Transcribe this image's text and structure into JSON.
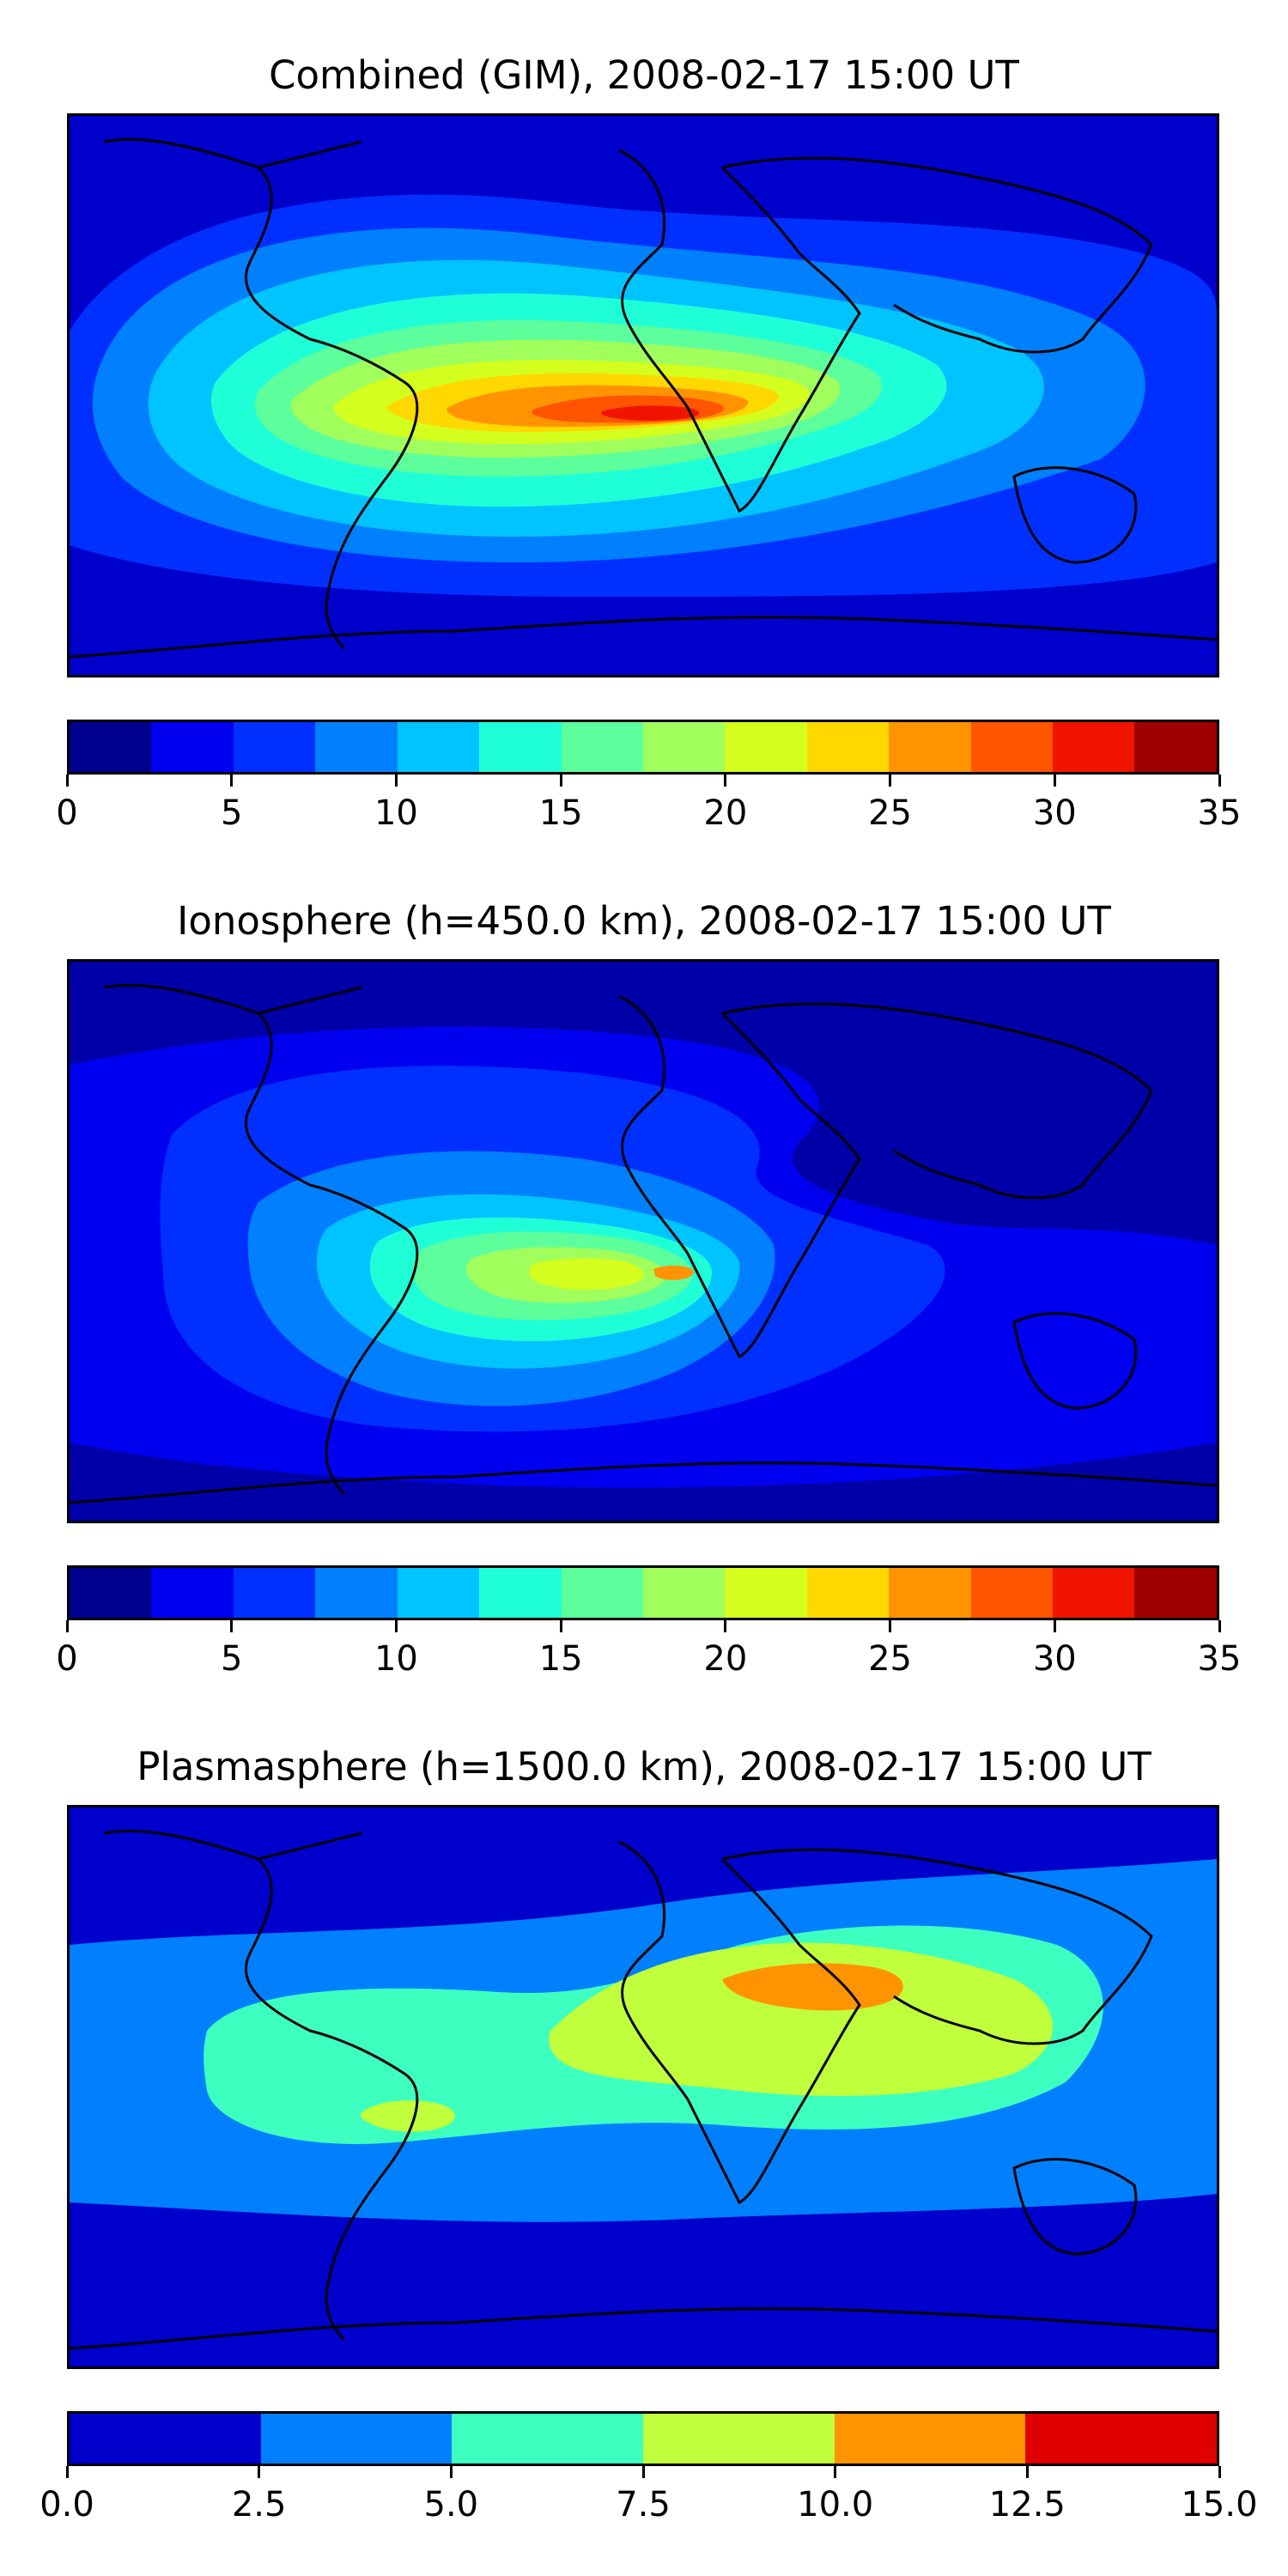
{
  "panels": [
    {
      "title": "Combined (GIM), 2008-02-17 15:00 UT",
      "background": "#0000cc",
      "colorbar": {
        "colors": [
          "#00008f",
          "#0000f0",
          "#0030ff",
          "#0080ff",
          "#00c4ff",
          "#1effd8",
          "#5cff9c",
          "#a0ff5c",
          "#d4ff1e",
          "#ffd800",
          "#ff9400",
          "#ff5400",
          "#f01400",
          "#a00000"
        ],
        "ticks": [
          "0",
          "5",
          "10",
          "15",
          "20",
          "25",
          "30",
          "35"
        ]
      },
      "contours": [
        {
          "color": "#0030ff"
        },
        {
          "color": "#0080ff"
        },
        {
          "color": "#00c4ff"
        },
        {
          "color": "#1effd8"
        },
        {
          "color": "#5cff9c"
        },
        {
          "color": "#a0ff5c"
        },
        {
          "color": "#d4ff1e"
        },
        {
          "color": "#ffd800"
        },
        {
          "color": "#ff9400"
        },
        {
          "color": "#ff5400"
        },
        {
          "color": "#f01400"
        }
      ]
    },
    {
      "title": "Ionosphere  (h=450.0 km), 2008-02-17 15:00 UT",
      "background": "#0000a8",
      "colorbar": {
        "colors": [
          "#00008f",
          "#0000f0",
          "#0030ff",
          "#0080ff",
          "#00c4ff",
          "#1effd8",
          "#5cff9c",
          "#a0ff5c",
          "#d4ff1e",
          "#ffd800",
          "#ff9400",
          "#ff5400",
          "#f01400",
          "#a00000"
        ],
        "ticks": [
          "0",
          "5",
          "10",
          "15",
          "20",
          "25",
          "30",
          "35"
        ]
      },
      "contours": [
        {
          "color": "#0000f0"
        },
        {
          "color": "#0030ff"
        },
        {
          "color": "#0080ff"
        },
        {
          "color": "#00c4ff"
        },
        {
          "color": "#1effd8"
        },
        {
          "color": "#5cff9c"
        },
        {
          "color": "#a0ff5c"
        },
        {
          "color": "#d4ff1e"
        },
        {
          "color": "#ff9400"
        }
      ]
    },
    {
      "title": "Plasmasphere (h=1500.0 km), 2008-02-17 15:00 UT",
      "background": "#0000cc",
      "colorbar": {
        "colors": [
          "#0000cc",
          "#0080ff",
          "#3cffc0",
          "#c0ff3c",
          "#ff9400",
          "#e00000"
        ],
        "ticks": [
          "0.0",
          "2.5",
          "5.0",
          "7.5",
          "10.0",
          "12.5",
          "15.0"
        ]
      },
      "contours": [
        {
          "color": "#0080ff"
        },
        {
          "color": "#3cffc0"
        },
        {
          "color": "#c0ff3c"
        },
        {
          "color": "#ff9400"
        }
      ]
    }
  ]
}
